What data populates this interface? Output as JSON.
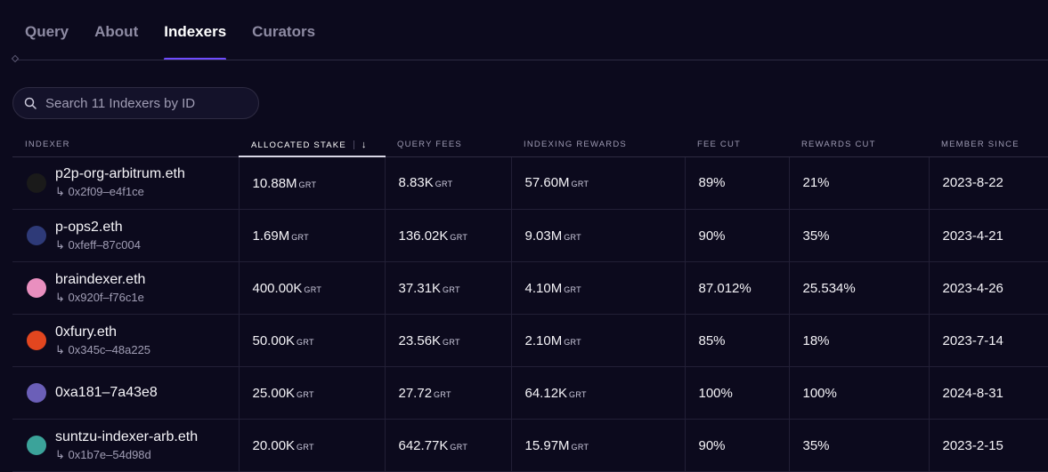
{
  "tabs": [
    {
      "label": "Query",
      "active": false
    },
    {
      "label": "About",
      "active": false
    },
    {
      "label": "Indexers",
      "active": true
    },
    {
      "label": "Curators",
      "active": false
    }
  ],
  "search": {
    "placeholder": "Search 11 Indexers by ID",
    "icon": "search-icon"
  },
  "table": {
    "columns": [
      "INDEXER",
      "ALLOCATED STAKE",
      "QUERY FEES",
      "INDEXING REWARDS",
      "FEE CUT",
      "REWARDS CUT",
      "MEMBER SINCE"
    ],
    "sort_arrow": "↓",
    "unit": "GRT",
    "rows": [
      {
        "name": "p2p-org-arbitrum.eth",
        "address": "↳ 0x2f09–e4f1ce",
        "avatar": "p2p-logo",
        "color": "#1a1a1a",
        "stake": "10.88M",
        "fees": "8.83K",
        "rewards": "57.60M",
        "fee_cut": "89%",
        "rewards_cut": "21%",
        "since": "2023-8-22"
      },
      {
        "name": "p-ops2.eth",
        "address": "↳ 0xfeff–87c004",
        "avatar": "v-logo",
        "color": "#2e3a78",
        "stake": "1.69M",
        "fees": "136.02K",
        "rewards": "9.03M",
        "fee_cut": "90%",
        "rewards_cut": "35%",
        "since": "2023-4-21"
      },
      {
        "name": "braindexer.eth",
        "address": "↳ 0x920f–f76c1e",
        "avatar": "brain-logo",
        "color": "#e98fbf",
        "stake": "400.00K",
        "fees": "37.31K",
        "rewards": "4.10M",
        "fee_cut": "87.012%",
        "rewards_cut": "25.534%",
        "since": "2023-4-26"
      },
      {
        "name": "0xfury.eth",
        "address": "↳ 0x345c–48a225",
        "avatar": "fury-logo",
        "color": "#e2461f",
        "stake": "50.00K",
        "fees": "23.56K",
        "rewards": "2.10M",
        "fee_cut": "85%",
        "rewards_cut": "18%",
        "since": "2023-7-14"
      },
      {
        "name": "0xa181–7a43e8",
        "address": "",
        "avatar": "pixel-logo",
        "color": "#6b5fb8",
        "stake": "25.00K",
        "fees": "27.72",
        "rewards": "64.12K",
        "fee_cut": "100%",
        "rewards_cut": "100%",
        "since": "2024-8-31"
      },
      {
        "name": "suntzu-indexer-arb.eth",
        "address": "↳ 0x1b7e–54d98d",
        "avatar": "suntzu-logo",
        "color": "#3ba39a",
        "stake": "20.00K",
        "fees": "642.77K",
        "rewards": "15.97M",
        "fee_cut": "90%",
        "rewards_cut": "35%",
        "since": "2023-2-15"
      }
    ]
  }
}
